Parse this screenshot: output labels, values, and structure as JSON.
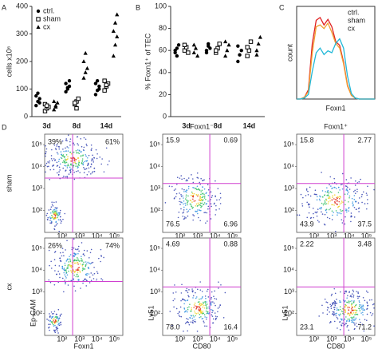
{
  "chart_data": [
    {
      "type": "strip",
      "panel": "A",
      "ylabel": "cells x10⁶",
      "categories": [
        "3d",
        "8d",
        "14d"
      ],
      "ylim": [
        0,
        400
      ],
      "yticks": [
        0,
        100,
        200,
        300,
        400
      ],
      "legend": "upper left",
      "series": [
        {
          "name": "ctrl.",
          "marker": "circle",
          "color": "#000000",
          "values": [
            [
              40,
              55,
              65,
              75,
              85,
              50
            ],
            [
              90,
              100,
              110,
              120,
              105,
              130
            ],
            [
              80,
              95,
              110,
              120,
              130,
              100
            ]
          ]
        },
        {
          "name": "sham",
          "marker": "square",
          "color": "#000000",
          "values": [
            [
              20,
              30,
              35,
              45,
              40
            ],
            [
              45,
              55,
              65,
              50,
              30
            ],
            [
              95,
              110,
              120,
              130,
              115
            ]
          ]
        },
        {
          "name": "cx",
          "marker": "triangle",
          "color": "#000000",
          "values": [
            [
              25,
              40,
              50,
              55,
              35
            ],
            [
              140,
              160,
              175,
              200,
              230
            ],
            [
              220,
              260,
              290,
              310,
              340,
              370
            ]
          ]
        }
      ]
    },
    {
      "type": "strip",
      "panel": "B",
      "ylabel": "% Foxn1⁺ of TEC",
      "categories": [
        "3d",
        "8d",
        "14d"
      ],
      "ylim": [
        0,
        100
      ],
      "yticks": [
        0,
        20,
        40,
        60,
        80,
        100
      ],
      "series": [
        {
          "marker": "circle",
          "color": "#000000",
          "values": [
            [
              58,
              62,
              65,
              60,
              55
            ],
            [
              60,
              64,
              62,
              58,
              66
            ],
            [
              50,
              56,
              60,
              64
            ]
          ]
        },
        {
          "marker": "square",
          "color": "#000000",
          "values": [
            [
              60,
              63,
              58,
              65
            ],
            [
              58,
              62,
              66,
              60
            ],
            [
              55,
              60,
              68,
              63
            ]
          ]
        },
        {
          "marker": "triangle",
          "color": "#000000",
          "values": [
            [
              58,
              62,
              55,
              65
            ],
            [
              55,
              60,
              65,
              68
            ],
            [
              60,
              66,
              72,
              56
            ]
          ]
        }
      ]
    },
    {
      "type": "histogram",
      "panel": "C",
      "xlabel": "Foxn1",
      "ylabel": "count",
      "legend": "upper right",
      "xlim": [
        0,
        100
      ],
      "ylim": [
        0,
        100
      ],
      "x": [
        0,
        5,
        10,
        15,
        20,
        25,
        30,
        35,
        40,
        45,
        50,
        55,
        60,
        65,
        70,
        75,
        80,
        85,
        90,
        95,
        100
      ],
      "series": [
        {
          "name": "ctrl.",
          "color": "#e02020",
          "values": [
            0,
            0,
            2,
            10,
            60,
            85,
            88,
            80,
            86,
            78,
            62,
            58,
            40,
            15,
            4,
            1,
            0,
            0,
            0,
            0,
            0
          ]
        },
        {
          "name": "sham",
          "color": "#f0a030",
          "values": [
            0,
            0,
            2,
            8,
            50,
            78,
            80,
            76,
            82,
            72,
            60,
            55,
            38,
            14,
            4,
            1,
            0,
            0,
            0,
            0,
            0
          ]
        },
        {
          "name": "cx",
          "color": "#20b8d8",
          "values": [
            0,
            0,
            1,
            5,
            30,
            50,
            55,
            48,
            52,
            50,
            60,
            65,
            55,
            25,
            6,
            1,
            0,
            0,
            0,
            0,
            0
          ]
        }
      ]
    },
    {
      "type": "flow",
      "panel": "D",
      "row_label": "sham",
      "xscale": "log",
      "yscale": "log",
      "xlim": [
        10,
        300000
      ],
      "ylim": [
        10,
        300000
      ],
      "xticks": [
        {
          "value": 100,
          "label": "10²"
        },
        {
          "value": 1000,
          "label": "10³"
        },
        {
          "value": 10000,
          "label": "10⁴"
        },
        {
          "value": 100000,
          "label": "10⁵"
        }
      ],
      "yticks": [
        {
          "value": 100,
          "label": "10²"
        },
        {
          "value": 1000,
          "label": "10³"
        },
        {
          "value": 10000,
          "label": "10⁴"
        },
        {
          "value": 100000,
          "label": "10⁵"
        }
      ],
      "gate_x": 400,
      "gate_y": 3000,
      "quadrants": [
        "top-left",
        "top-right"
      ],
      "values": [
        39,
        61
      ],
      "value_labels": [
        "39%",
        "61%"
      ]
    },
    {
      "type": "flow",
      "title": "Foxn1⁻",
      "xscale": "log",
      "yscale": "log",
      "xlim": [
        10,
        300000
      ],
      "ylim": [
        10,
        300000
      ],
      "xticks": [
        {
          "value": 100,
          "label": "10²"
        },
        {
          "value": 1000,
          "label": "10³"
        },
        {
          "value": 10000,
          "label": "10⁴"
        },
        {
          "value": 100000,
          "label": "10⁵"
        }
      ],
      "yticks": [
        {
          "value": 100,
          "label": "10²"
        },
        {
          "value": 1000,
          "label": "10³"
        },
        {
          "value": 10000,
          "label": "10⁴"
        },
        {
          "value": 100000,
          "label": "10⁵"
        }
      ],
      "gate_x": 5000,
      "gate_y": 1700,
      "quadrants": [
        "top-left",
        "top-right",
        "bottom-left",
        "bottom-right"
      ],
      "values": [
        15.9,
        0.69,
        76.5,
        6.96
      ],
      "value_labels": [
        "15.9",
        "0.69",
        "76.5",
        "6.96"
      ]
    },
    {
      "type": "flow",
      "title": "Foxn1⁺",
      "xscale": "log",
      "yscale": "log",
      "xlim": [
        10,
        300000
      ],
      "ylim": [
        10,
        300000
      ],
      "xticks": [
        {
          "value": 100,
          "label": "10²"
        },
        {
          "value": 1000,
          "label": "10³"
        },
        {
          "value": 10000,
          "label": "10⁴"
        },
        {
          "value": 100000,
          "label": "10⁵"
        }
      ],
      "yticks": [
        {
          "value": 100,
          "label": "10²"
        },
        {
          "value": 1000,
          "label": "10³"
        },
        {
          "value": 10000,
          "label": "10⁴"
        },
        {
          "value": 100000,
          "label": "10⁵"
        }
      ],
      "gate_x": 5000,
      "gate_y": 1700,
      "quadrants": [
        "top-left",
        "top-right",
        "bottom-left",
        "bottom-right"
      ],
      "values": [
        15.8,
        2.77,
        43.9,
        37.5
      ],
      "value_labels": [
        "15.8",
        "2.77",
        "43.9",
        "37.5"
      ]
    },
    {
      "type": "flow",
      "row_label": "cx",
      "xlabel": "Foxn1",
      "ylabel": "Ep-CAM",
      "xscale": "log",
      "yscale": "log",
      "xlim": [
        10,
        300000
      ],
      "ylim": [
        10,
        300000
      ],
      "xticks": [
        {
          "value": 100,
          "label": "10²"
        },
        {
          "value": 1000,
          "label": "10³"
        },
        {
          "value": 10000,
          "label": "10⁴"
        },
        {
          "value": 100000,
          "label": "10⁵"
        }
      ],
      "yticks": [
        {
          "value": 100,
          "label": "10²"
        },
        {
          "value": 1000,
          "label": "10³"
        },
        {
          "value": 10000,
          "label": "10⁴"
        },
        {
          "value": 100000,
          "label": "10⁵"
        }
      ],
      "gate_x": 400,
      "gate_y": 3000,
      "quadrants": [
        "top-left",
        "top-right"
      ],
      "values": [
        26,
        74
      ],
      "value_labels": [
        "26%",
        "74%"
      ]
    },
    {
      "type": "flow",
      "xlabel": "CD80",
      "ylabel": "Ly51",
      "xscale": "log",
      "yscale": "log",
      "xlim": [
        10,
        300000
      ],
      "ylim": [
        10,
        300000
      ],
      "xticks": [
        {
          "value": 100,
          "label": "10²"
        },
        {
          "value": 1000,
          "label": "10³"
        },
        {
          "value": 10000,
          "label": "10⁴"
        },
        {
          "value": 100000,
          "label": "10⁵"
        }
      ],
      "yticks": [
        {
          "value": 100,
          "label": "10²"
        },
        {
          "value": 1000,
          "label": "10³"
        },
        {
          "value": 10000,
          "label": "10⁴"
        },
        {
          "value": 100000,
          "label": "10⁵"
        }
      ],
      "gate_x": 5000,
      "gate_y": 1700,
      "quadrants": [
        "top-left",
        "top-right",
        "bottom-left",
        "bottom-right"
      ],
      "values": [
        4.69,
        0.88,
        78.0,
        16.4
      ],
      "value_labels": [
        "4.69",
        "0.88",
        "78.0",
        "16.4"
      ]
    },
    {
      "type": "flow",
      "xlabel": "CD80",
      "ylabel": "Ly51",
      "xscale": "log",
      "yscale": "log",
      "xlim": [
        10,
        300000
      ],
      "ylim": [
        10,
        300000
      ],
      "xticks": [
        {
          "value": 100,
          "label": "10²"
        },
        {
          "value": 1000,
          "label": "10³"
        },
        {
          "value": 10000,
          "label": "10⁴"
        },
        {
          "value": 100000,
          "label": "10⁵"
        }
      ],
      "yticks": [
        {
          "value": 100,
          "label": "10²"
        },
        {
          "value": 1000,
          "label": "10³"
        },
        {
          "value": 10000,
          "label": "10⁴"
        },
        {
          "value": 100000,
          "label": "10⁵"
        }
      ],
      "gate_x": 5000,
      "gate_y": 1700,
      "quadrants": [
        "top-left",
        "top-right",
        "bottom-left",
        "bottom-right"
      ],
      "values": [
        2.22,
        3.48,
        23.1,
        71.2
      ],
      "value_labels": [
        "2.22",
        "3.48",
        "23.1",
        "71.2"
      ]
    }
  ]
}
